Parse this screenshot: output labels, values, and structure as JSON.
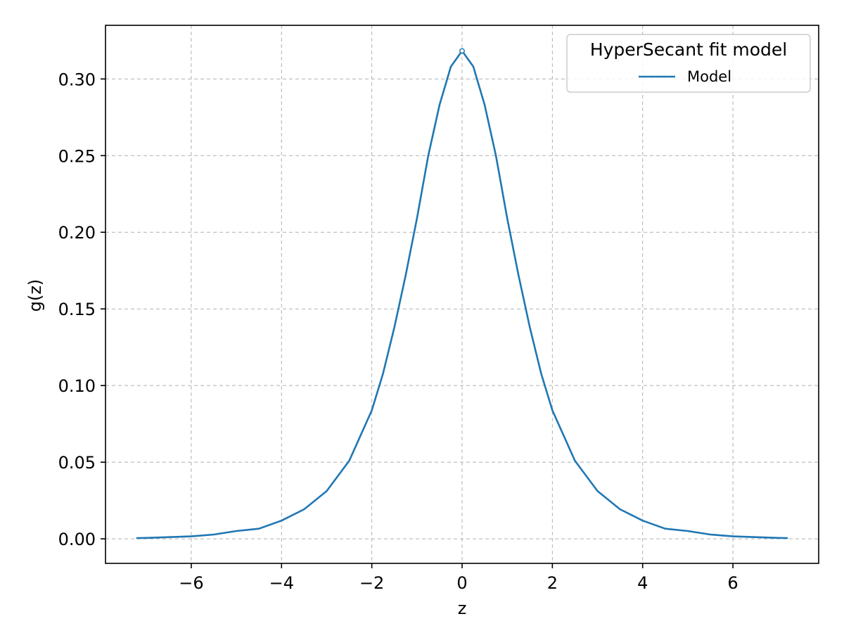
{
  "chart_data": {
    "type": "line",
    "title": "",
    "xlabel": "z",
    "ylabel": "g(z)",
    "xlim": [
      -7.9,
      7.9
    ],
    "ylim": [
      -0.016,
      0.335
    ],
    "xticks": [
      -6,
      -4,
      -2,
      0,
      2,
      4,
      6
    ],
    "xtick_labels": [
      "−6",
      "−4",
      "−2",
      "0",
      "2",
      "4",
      "6"
    ],
    "yticks": [
      0.0,
      0.05,
      0.1,
      0.15,
      0.2,
      0.25,
      0.3
    ],
    "ytick_labels": [
      "0.00",
      "0.05",
      "0.10",
      "0.15",
      "0.20",
      "0.25",
      "0.30"
    ],
    "grid": true,
    "legend": {
      "title": "HyperSecant fit model",
      "placement": "top-right",
      "entries": [
        "Model"
      ]
    },
    "series": [
      {
        "name": "Model",
        "color": "#1f77b4",
        "x": [
          -7.2,
          -7.0,
          -6.5,
          -6.0,
          -5.5,
          -5.0,
          -4.5,
          -4.0,
          -3.5,
          -3.0,
          -2.5,
          -2.0,
          -1.75,
          -1.5,
          -1.25,
          -1.0,
          -0.75,
          -0.5,
          -0.25,
          0.0,
          0.25,
          0.5,
          0.75,
          1.0,
          1.25,
          1.5,
          1.75,
          2.0,
          2.5,
          3.0,
          3.5,
          4.0,
          4.5,
          5.0,
          5.5,
          6.0,
          6.5,
          7.0,
          7.2
        ],
        "y": [
          0.0005,
          0.0006,
          0.0011,
          0.0016,
          0.0028,
          0.0051,
          0.0066,
          0.0119,
          0.0193,
          0.0312,
          0.051,
          0.0838,
          0.108,
          0.138,
          0.172,
          0.209,
          0.25,
          0.283,
          0.308,
          0.3183,
          0.308,
          0.283,
          0.25,
          0.209,
          0.172,
          0.138,
          0.108,
          0.0838,
          0.051,
          0.0312,
          0.0193,
          0.0119,
          0.0066,
          0.0051,
          0.0028,
          0.0016,
          0.0011,
          0.0006,
          0.0005
        ]
      }
    ],
    "peak_marker": {
      "x": 0.0,
      "y": 0.3183
    }
  }
}
